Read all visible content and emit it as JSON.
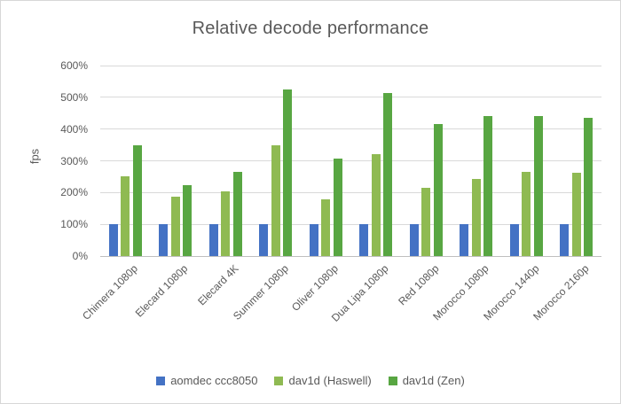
{
  "window": {
    "background": "#ffffff",
    "border_color": "#d7d7d7"
  },
  "colors": {
    "title_text": "#595959",
    "axis_text": "#595959",
    "gridline": "#d9d9d9",
    "axis_line": "#bfbfbf"
  },
  "chart_data": {
    "type": "bar",
    "title": "Relative decode performance",
    "xlabel": "",
    "ylabel": "fps",
    "ylim": [
      0,
      600
    ],
    "ytick_step": 100,
    "ytick_suffix": "%",
    "grid": true,
    "legend_position": "bottom",
    "categories": [
      "Chimera 1080p",
      "Elecard 1080p",
      "Elecard 4K",
      "Summer 1080p",
      "Oliver 1080p",
      "Dua Lipa 1080p",
      "Red 1080p",
      "Morocco 1080p",
      "Morocco 1440p",
      "Morocco 2160p"
    ],
    "series": [
      {
        "name": "aomdec ccc8050",
        "color": "#4472c4",
        "values": [
          100,
          100,
          100,
          100,
          100,
          100,
          100,
          100,
          100,
          100
        ]
      },
      {
        "name": "dav1d (Haswell)",
        "color": "#8fba52",
        "values": [
          250,
          188,
          205,
          348,
          178,
          321,
          215,
          244,
          265,
          263
        ]
      },
      {
        "name": "dav1d (Zen)",
        "color": "#58a642",
        "values": [
          350,
          222,
          264,
          525,
          306,
          514,
          416,
          442,
          440,
          435
        ]
      }
    ]
  }
}
